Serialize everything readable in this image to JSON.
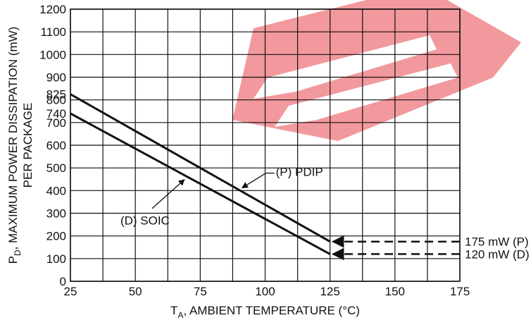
{
  "chart_data": {
    "type": "line",
    "xlabel_main": "T",
    "xlabel_sub": "A",
    "xlabel_rest": ", AMBIENT TEMPERATURE (°C)",
    "ylabel_main": "P",
    "ylabel_sub": "D",
    "ylabel_rest": ", MAXIMUM POWER DISSIPATION (mW)",
    "ylabel_line2": "PER PACKAGE",
    "xlim": [
      25,
      175
    ],
    "ylim": [
      0,
      1200
    ],
    "x_ticks": [
      25,
      50,
      75,
      100,
      125,
      150,
      175
    ],
    "y_ticks": [
      0,
      100,
      200,
      300,
      400,
      500,
      600,
      700,
      800,
      900,
      1000,
      1100,
      1200
    ],
    "y_extra_ticks": [
      825,
      740
    ],
    "grid": true,
    "series": [
      {
        "name": "(P) PDIP",
        "x": [
          25,
          125
        ],
        "y": [
          825,
          175
        ]
      },
      {
        "name": "(D) SOIC",
        "x": [
          25,
          125
        ],
        "y": [
          740,
          120
        ]
      }
    ],
    "limits": [
      {
        "label": "175 mW (P)",
        "value": 175,
        "x_from": 175,
        "x_to": 125
      },
      {
        "label": "120 mW (D)",
        "value": 120,
        "x_from": 175,
        "x_to": 125
      }
    ],
    "annotations": [
      {
        "text": "(P) PDIP",
        "series": 0,
        "at_x": 90
      },
      {
        "text": "(D) SOIC",
        "series": 1,
        "at_x": 70
      }
    ]
  }
}
